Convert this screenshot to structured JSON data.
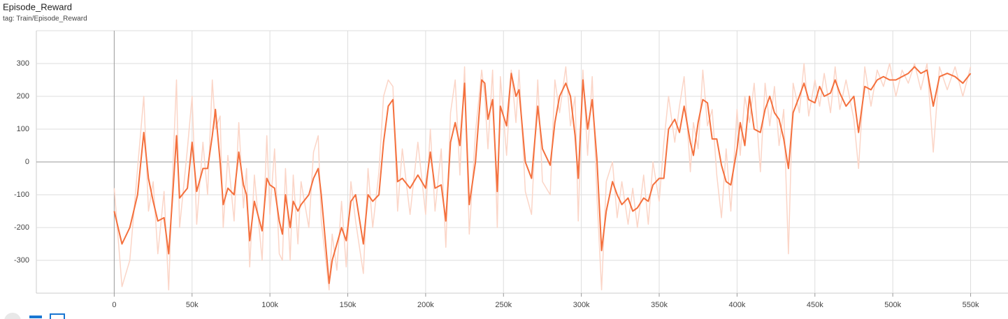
{
  "chart_data": {
    "type": "line",
    "title": "Episode_Reward",
    "subtitle": "tag: Train/Episode_Reward",
    "grid": true,
    "xlim": [
      -50000,
      574000
    ],
    "ylim": [
      -400,
      400
    ],
    "xticks": [
      0,
      {
        "value": 50000,
        "label": "50k"
      },
      {
        "value": 100000,
        "label": "100k"
      },
      {
        "value": 150000,
        "label": "150k"
      },
      {
        "value": 200000,
        "label": "200k"
      },
      {
        "value": 250000,
        "label": "250k"
      },
      {
        "value": 300000,
        "label": "300k"
      },
      {
        "value": 350000,
        "label": "350k"
      },
      {
        "value": 400000,
        "label": "400k"
      },
      {
        "value": 450000,
        "label": "450k"
      },
      {
        "value": 500000,
        "label": "500k"
      },
      {
        "value": 550000,
        "label": "550k"
      }
    ],
    "yticks": [
      -300,
      -200,
      -100,
      0,
      100,
      200,
      300
    ],
    "x": [
      0,
      5000,
      10000,
      15000,
      19000,
      22000,
      25000,
      28000,
      32000,
      35000,
      38000,
      40000,
      42000,
      47000,
      50000,
      53000,
      57000,
      60000,
      63000,
      65000,
      68000,
      70000,
      73000,
      77000,
      80000,
      83000,
      85000,
      87000,
      90000,
      95000,
      98000,
      100000,
      103000,
      106000,
      108000,
      110000,
      113000,
      115000,
      118000,
      120000,
      125000,
      128000,
      131000,
      133000,
      138000,
      140000,
      143000,
      146000,
      149000,
      152000,
      155000,
      160000,
      163000,
      166000,
      170000,
      173000,
      176000,
      179000,
      182000,
      185000,
      190000,
      195000,
      200000,
      203000,
      206000,
      210000,
      213000,
      216000,
      219000,
      222000,
      225000,
      228000,
      232000,
      236000,
      238000,
      240000,
      243000,
      246000,
      248000,
      252000,
      255000,
      258000,
      260000,
      264000,
      268000,
      272000,
      275000,
      280000,
      283000,
      286000,
      290000,
      293000,
      296000,
      298000,
      301000,
      304000,
      307000,
      310000,
      313000,
      316000,
      320000,
      323000,
      326000,
      330000,
      333000,
      336000,
      340000,
      343000,
      346000,
      350000,
      353000,
      356000,
      360000,
      363000,
      366000,
      370000,
      372000,
      375000,
      378000,
      381000,
      384000,
      387000,
      390000,
      393000,
      396000,
      400000,
      402000,
      405000,
      408000,
      411000,
      415000,
      418000,
      421000,
      424000,
      427000,
      430000,
      433000,
      436000,
      440000,
      443000,
      446000,
      450000,
      453000,
      456000,
      460000,
      463000,
      466000,
      470000,
      475000,
      478000,
      482000,
      486000,
      490000,
      494000,
      498000,
      502000,
      506000,
      510000,
      514000,
      518000,
      522000,
      526000,
      530000,
      535000,
      540000,
      545000,
      550000
    ],
    "series": [
      {
        "color": "#fbd5c7",
        "values": [
          -80,
          -380,
          -300,
          -20,
          200,
          -150,
          -60,
          -280,
          -90,
          -390,
          20,
          250,
          -200,
          40,
          200,
          -190,
          60,
          -100,
          250,
          100,
          140,
          -200,
          20,
          -180,
          120,
          -140,
          -20,
          -320,
          -40,
          -300,
          80,
          -160,
          40,
          -280,
          -300,
          -20,
          -300,
          -40,
          -250,
          -60,
          -200,
          30,
          80,
          -180,
          -390,
          -220,
          -330,
          -120,
          -320,
          -60,
          -180,
          -340,
          -20,
          -200,
          -30,
          200,
          250,
          230,
          -150,
          40,
          -160,
          60,
          -160,
          100,
          -150,
          40,
          -260,
          150,
          250,
          -40,
          290,
          -220,
          90,
          280,
          200,
          40,
          280,
          -200,
          260,
          20,
          280,
          120,
          280,
          -90,
          -160,
          250,
          -60,
          -100,
          250,
          150,
          290,
          110,
          200,
          -180,
          280,
          20,
          260,
          -100,
          -390,
          -60,
          0,
          -170,
          -60,
          -190,
          -80,
          -200,
          -40,
          -190,
          0,
          -120,
          60,
          200,
          60,
          170,
          260,
          -30,
          120,
          40,
          280,
          110,
          160,
          -40,
          -170,
          40,
          -150,
          160,
          20,
          200,
          120,
          240,
          -30,
          240,
          110,
          230,
          50,
          160,
          -280,
          240,
          150,
          300,
          140,
          250,
          170,
          270,
          150,
          290,
          160,
          250,
          130,
          -20,
          290,
          170,
          280,
          230,
          300,
          200,
          280,
          240,
          300,
          220,
          300,
          30,
          290,
          220,
          290,
          200,
          290
        ]
      },
      {
        "color": "#f4703d",
        "values": [
          -150,
          -250,
          -200,
          -100,
          90,
          -50,
          -120,
          -180,
          -170,
          -280,
          -70,
          80,
          -110,
          -80,
          60,
          -90,
          -20,
          -20,
          80,
          160,
          0,
          -130,
          -80,
          -100,
          30,
          -70,
          -100,
          -240,
          -120,
          -210,
          -50,
          -70,
          -80,
          -180,
          -220,
          -100,
          -200,
          -120,
          -150,
          -130,
          -100,
          -50,
          -20,
          -100,
          -370,
          -300,
          -250,
          -200,
          -240,
          -120,
          -100,
          -250,
          -100,
          -120,
          -100,
          60,
          170,
          190,
          -60,
          -50,
          -80,
          -40,
          -80,
          30,
          -80,
          -70,
          -180,
          60,
          120,
          50,
          240,
          -130,
          0,
          250,
          240,
          130,
          190,
          -90,
          170,
          110,
          270,
          200,
          220,
          0,
          -50,
          170,
          40,
          -10,
          120,
          200,
          240,
          200,
          80,
          -50,
          250,
          100,
          190,
          10,
          -270,
          -150,
          -60,
          -100,
          -130,
          -110,
          -150,
          -140,
          -110,
          -120,
          -70,
          -50,
          -50,
          100,
          130,
          90,
          170,
          60,
          20,
          120,
          190,
          180,
          70,
          70,
          -10,
          -60,
          -70,
          40,
          120,
          50,
          200,
          100,
          90,
          160,
          200,
          150,
          130,
          70,
          -20,
          150,
          200,
          240,
          190,
          180,
          230,
          200,
          210,
          250,
          210,
          170,
          200,
          90,
          230,
          220,
          250,
          260,
          250,
          250,
          260,
          270,
          290,
          270,
          280,
          170,
          260,
          270,
          260,
          240,
          270
        ]
      }
    ]
  }
}
